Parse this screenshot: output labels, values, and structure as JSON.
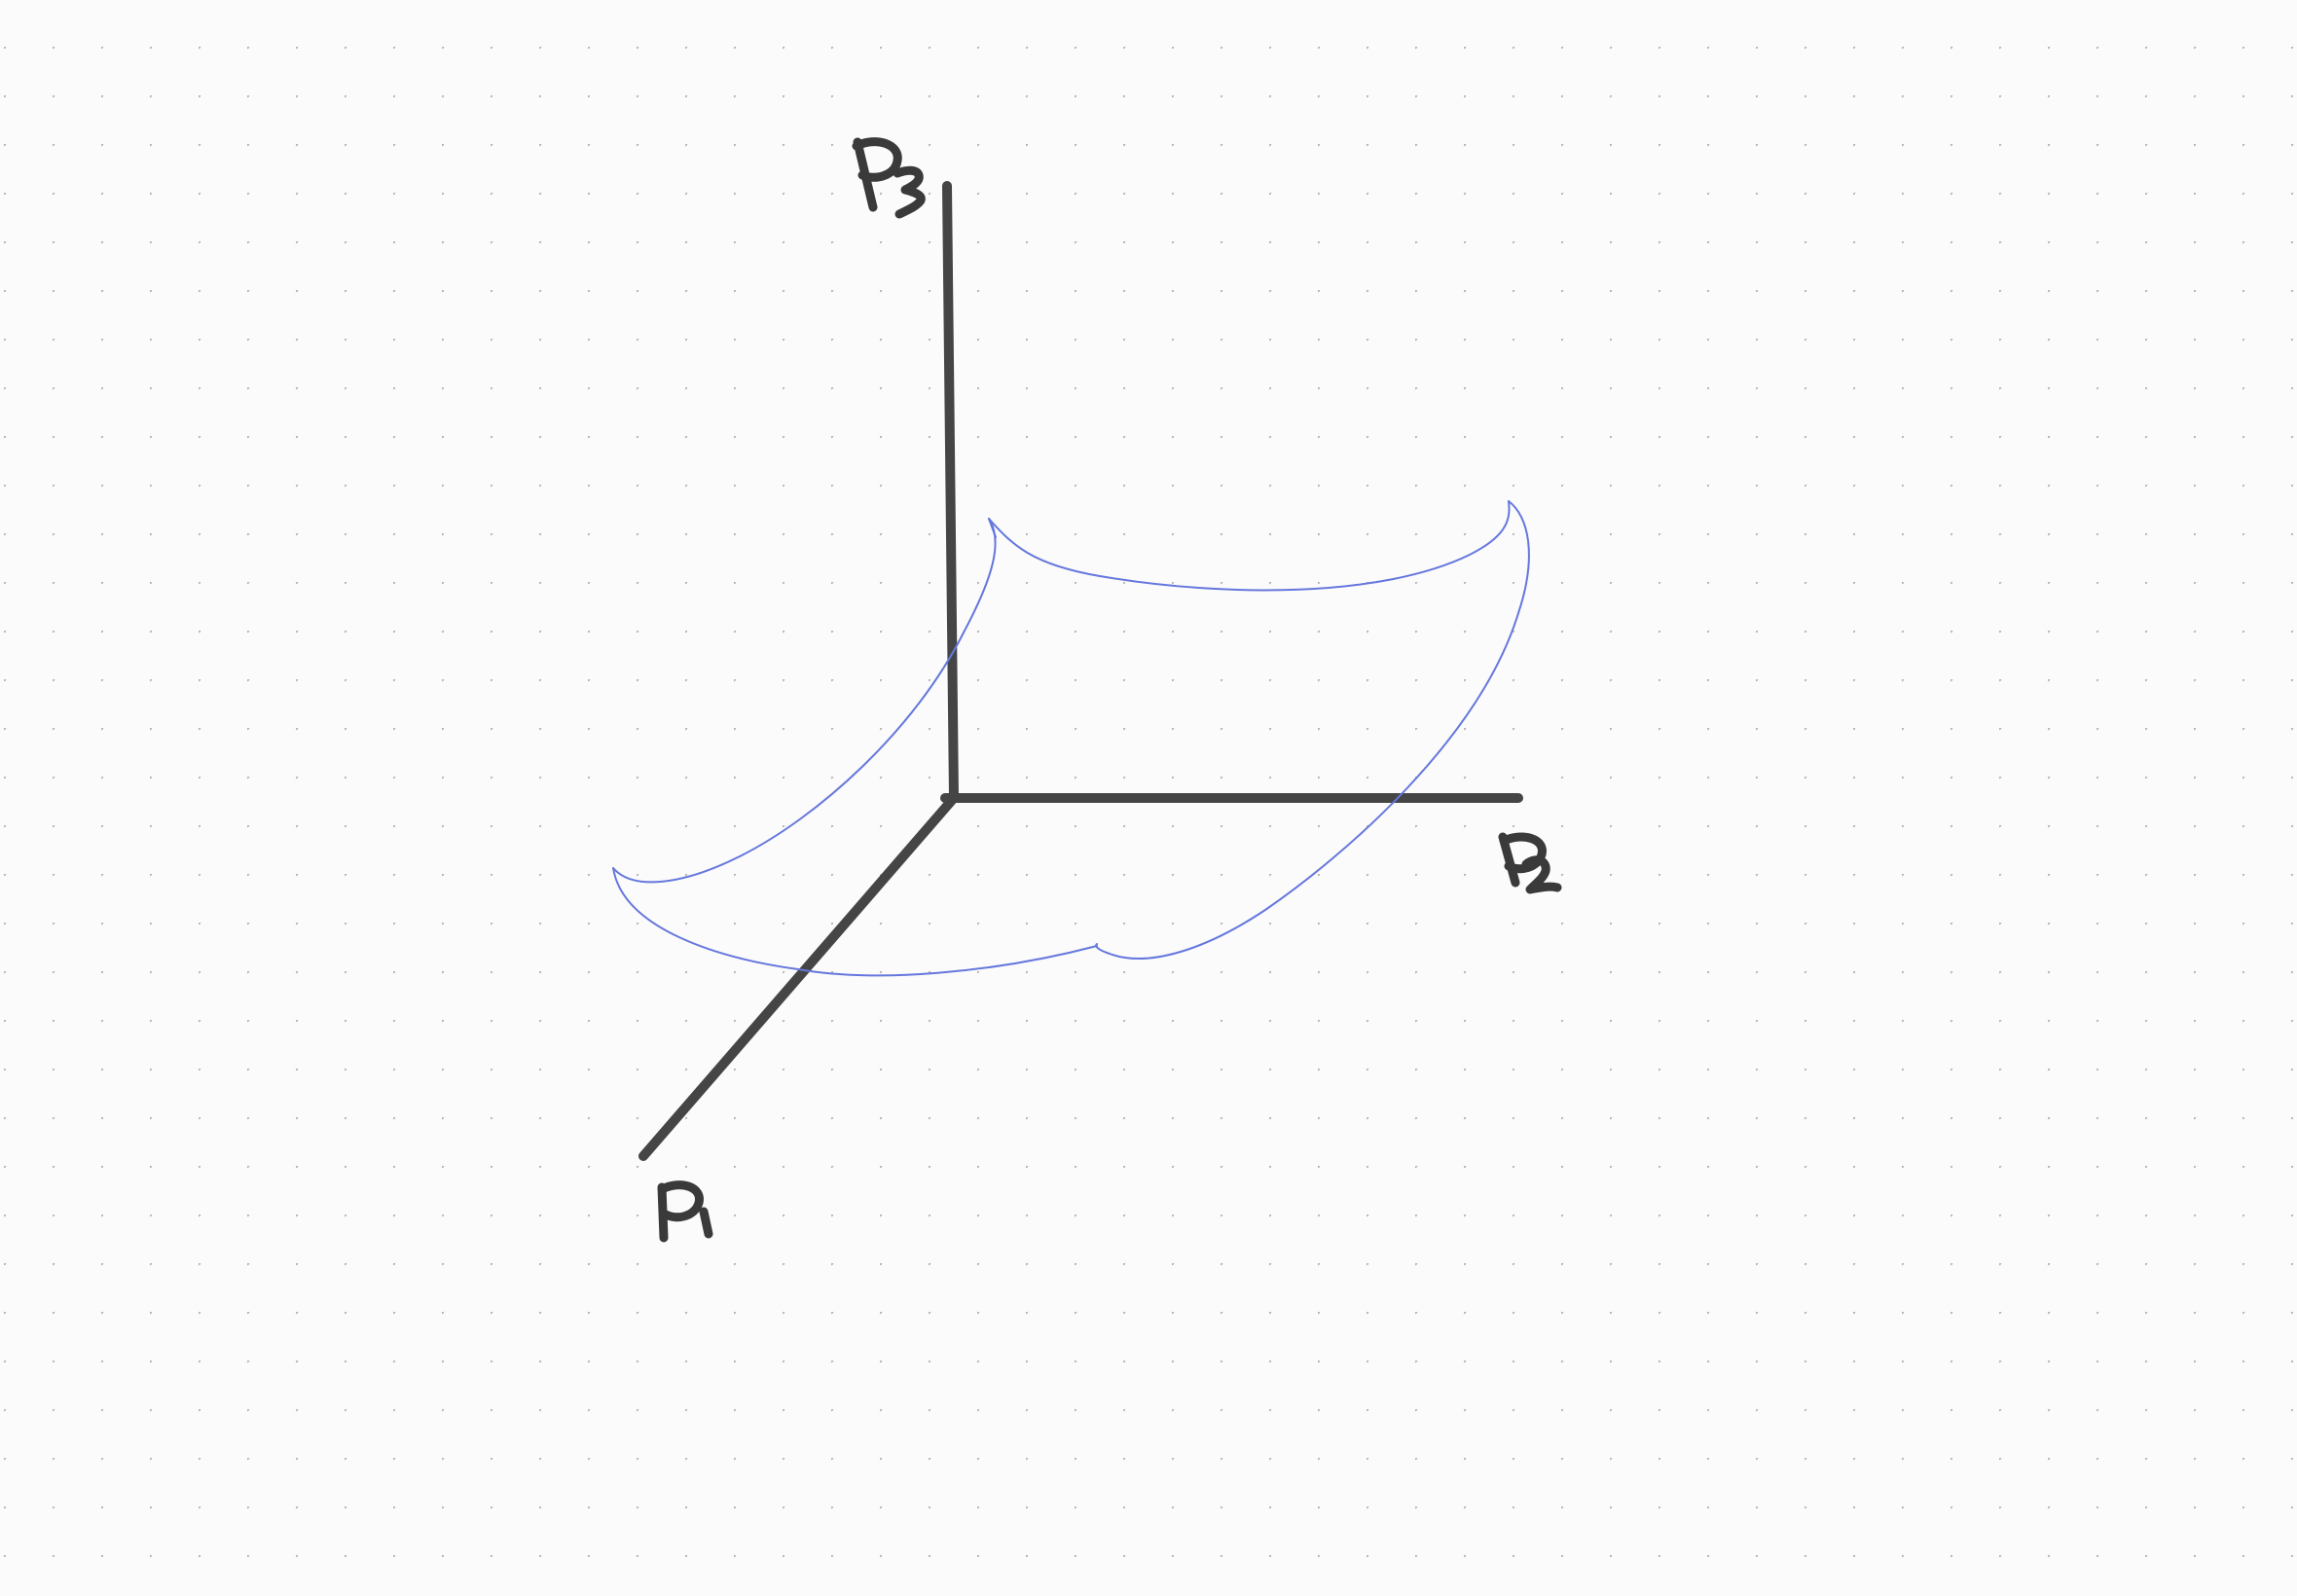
{
  "diagram": {
    "background_color": "#fbfbfb",
    "dot_color": "#b7b7b7",
    "axis_color": "#454545",
    "surface_color": "#6577dd",
    "axes": [
      {
        "id": "p3",
        "label": "P3"
      },
      {
        "id": "p2",
        "label": "P2"
      },
      {
        "id": "p1",
        "label": "P1"
      }
    ]
  }
}
